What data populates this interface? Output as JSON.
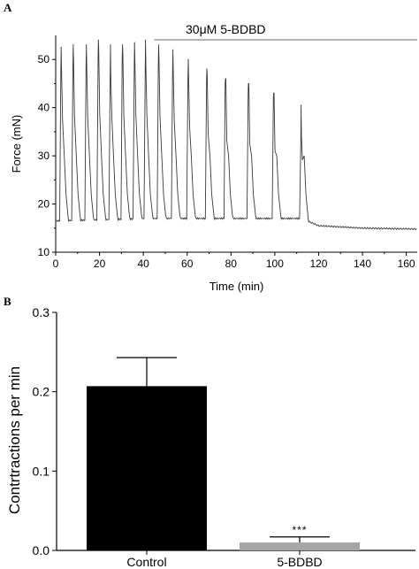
{
  "panels": {
    "a_label": "A",
    "b_label": "B"
  },
  "chart_data": [
    {
      "type": "line",
      "xlabel": "Time (min)",
      "ylabel": "Force (mN)",
      "xlim": [
        0,
        165
      ],
      "ylim": [
        10,
        55
      ],
      "xticks": [
        0,
        20,
        40,
        60,
        80,
        100,
        120,
        140,
        160
      ],
      "yticks": [
        10,
        20,
        30,
        40,
        50
      ],
      "annotation": {
        "text": "30μM 5-BDBD",
        "x_start": 45,
        "x_end": 165
      },
      "series": [
        {
          "baseline": [
            [
              0,
              16.5
            ],
            [
              44,
              17.0
            ],
            [
              112,
              17.0
            ],
            [
              120,
              15.5
            ],
            [
              140,
              15.0
            ],
            [
              165,
              14.8
            ]
          ],
          "peaks": [
            {
              "x": 2.5,
              "y": 52.5,
              "notch": 47
            },
            {
              "x": 8,
              "y": 53,
              "notch": 49
            },
            {
              "x": 14,
              "y": 53,
              "notch": 48
            },
            {
              "x": 19.5,
              "y": 54,
              "notch": 51
            },
            {
              "x": 25,
              "y": 53,
              "notch": 46
            },
            {
              "x": 30.5,
              "y": 53,
              "notch": 50
            },
            {
              "x": 36,
              "y": 53.5,
              "notch": 49
            },
            {
              "x": 41,
              "y": 54,
              "notch": 48
            },
            {
              "x": 47,
              "y": 53,
              "notch": 49
            },
            {
              "x": 53.5,
              "y": 52,
              "notch": 47
            },
            {
              "x": 60.5,
              "y": 50,
              "notch": 46
            },
            {
              "x": 69,
              "y": 48,
              "notch": 46
            },
            {
              "x": 77.5,
              "y": 46,
              "notch": 45
            },
            {
              "x": 88,
              "y": 45,
              "notch": 44
            },
            {
              "x": 99.5,
              "y": 43,
              "notch": 42
            },
            {
              "x": 112,
              "y": 40.5,
              "notch": 33
            }
          ]
        }
      ]
    },
    {
      "type": "bar",
      "categories": [
        "Control",
        "5-BDBD"
      ],
      "values": [
        0.207,
        0.01
      ],
      "errors": [
        0.036,
        0.007
      ],
      "colors": [
        "#000000",
        "#a6a6a6"
      ],
      "ylabel": "Contrtractions per min",
      "ylim": [
        0,
        0.3
      ],
      "yticks": [
        0.0,
        0.1,
        0.2,
        0.3
      ],
      "ytick_labels": [
        "0.0",
        "0.1",
        "0.2",
        "0.3"
      ],
      "significance": "***"
    }
  ]
}
